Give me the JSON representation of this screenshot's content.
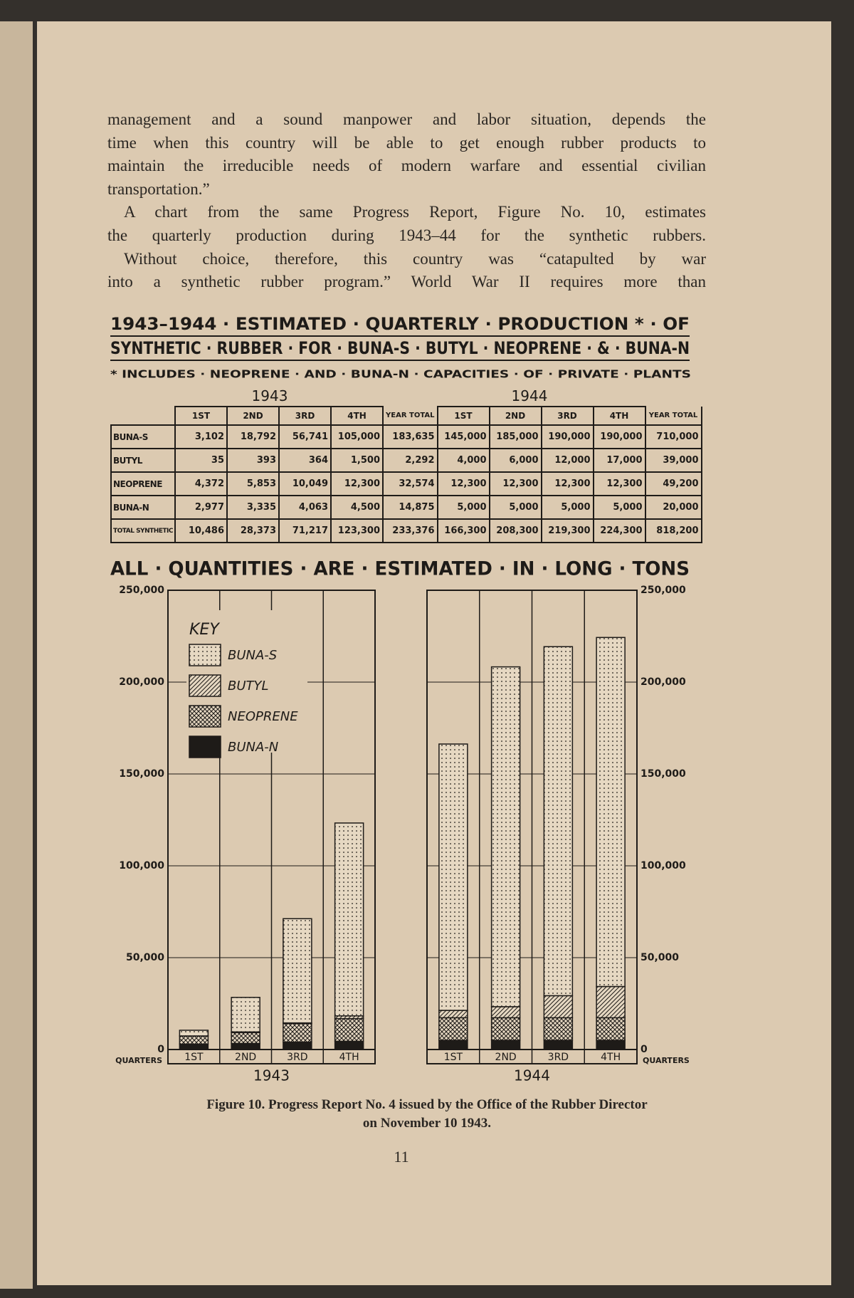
{
  "body": [
    [
      "management and a sound manpower and labor situation, depends the",
      "time when this country will be able to get enough rubber products to",
      "maintain the irreducible needs of modern warfare and essential civilian",
      "transportation.”"
    ],
    [
      "A chart from the same Progress Report, Figure No. 10, estimates",
      "the quarterly production during 1943–44 for the synthetic rubbers."
    ],
    [
      "Without choice, therefore, this country was “catapulted by war",
      "into a synthetic rubber program.”  World War II requires more than"
    ]
  ],
  "figure": {
    "title": [
      "1943–1944 · ESTIMATED · QUARTERLY · PRODUCTION * · OF",
      "SYNTHETIC · RUBBER · FOR · BUNA-S · BUTYL · NEOPRENE · & · BUNA-N"
    ],
    "footnote": "* INCLUDES · NEOPRENE · AND · BUNA-N · CAPACITIES · OF · PRIVATE · PLANTS",
    "caption": [
      "Figure 10. Progress Report No. 4 issued by the Office of the Rubber Director",
      "on November 10 1943."
    ]
  },
  "table": {
    "years": [
      "1943",
      "1944"
    ],
    "header": [
      "1ST",
      "2ND",
      "3RD",
      "4TH",
      "YEAR TOTAL",
      "1ST",
      "2ND",
      "3RD",
      "4TH",
      "YEAR TOTAL"
    ],
    "rows": [
      {
        "label": "BUNA-S",
        "cells": [
          "3,102",
          "18,792",
          "56,741",
          "105,000",
          "183,635",
          "145,000",
          "185,000",
          "190,000",
          "190,000",
          "710,000"
        ]
      },
      {
        "label": "BUTYL",
        "cells": [
          "35",
          "393",
          "364",
          "1,500",
          "2,292",
          "4,000",
          "6,000",
          "12,000",
          "17,000",
          "39,000"
        ]
      },
      {
        "label": "NEOPRENE",
        "cells": [
          "4,372",
          "5,853",
          "10,049",
          "12,300",
          "32,574",
          "12,300",
          "12,300",
          "12,300",
          "12,300",
          "49,200"
        ]
      },
      {
        "label": "BUNA-N",
        "cells": [
          "2,977",
          "3,335",
          "4,063",
          "4,500",
          "14,875",
          "5,000",
          "5,000",
          "5,000",
          "5,000",
          "20,000"
        ]
      },
      {
        "label": "TOTAL SYNTHETIC",
        "cells": [
          "10,486",
          "28,373",
          "71,217",
          "123,300",
          "233,376",
          "166,300",
          "208,300",
          "219,300",
          "224,300",
          "818,200"
        ]
      }
    ]
  },
  "chart_data": {
    "type": "bar",
    "stacked": true,
    "title": "ALL · QUANTITIES · ARE · ESTIMATED · IN · LONG · TONS",
    "x_label": "QUARTERS",
    "groups": [
      {
        "label": "1943",
        "categories": [
          "1ST",
          "2ND",
          "3RD",
          "4TH"
        ]
      },
      {
        "label": "1944",
        "categories": [
          "1ST",
          "2ND",
          "3RD",
          "4TH"
        ]
      }
    ],
    "legend_title": "KEY",
    "legend": "upper left",
    "series": [
      {
        "name": "BUNA-S",
        "color": "#1e1b18",
        "pattern": "dots",
        "values": [
          3102,
          18792,
          56741,
          105000,
          145000,
          185000,
          190000,
          190000
        ]
      },
      {
        "name": "BUTYL",
        "color": "#1e1b18",
        "pattern": "hatch",
        "values": [
          35,
          393,
          364,
          1500,
          4000,
          6000,
          12000,
          17000
        ]
      },
      {
        "name": "NEOPRENE",
        "color": "#1e1b18",
        "pattern": "crosshatch",
        "values": [
          4372,
          5853,
          10049,
          12300,
          12300,
          12300,
          12300,
          12300
        ]
      },
      {
        "name": "BUNA-N",
        "color": "#1e1b18",
        "pattern": "solid",
        "values": [
          2977,
          3335,
          4063,
          4500,
          5000,
          5000,
          5000,
          5000
        ]
      }
    ],
    "ylim": [
      0,
      250000
    ],
    "yticks": [
      0,
      {
        "value": 50000,
        "label": "50,000"
      },
      {
        "value": 100000,
        "label": "100,000"
      },
      {
        "value": 150000,
        "label": "150,000"
      },
      {
        "value": 200000,
        "label": "200,000"
      },
      {
        "value": 250000,
        "label": "250,000"
      }
    ],
    "grid": true
  },
  "page_number": "11"
}
